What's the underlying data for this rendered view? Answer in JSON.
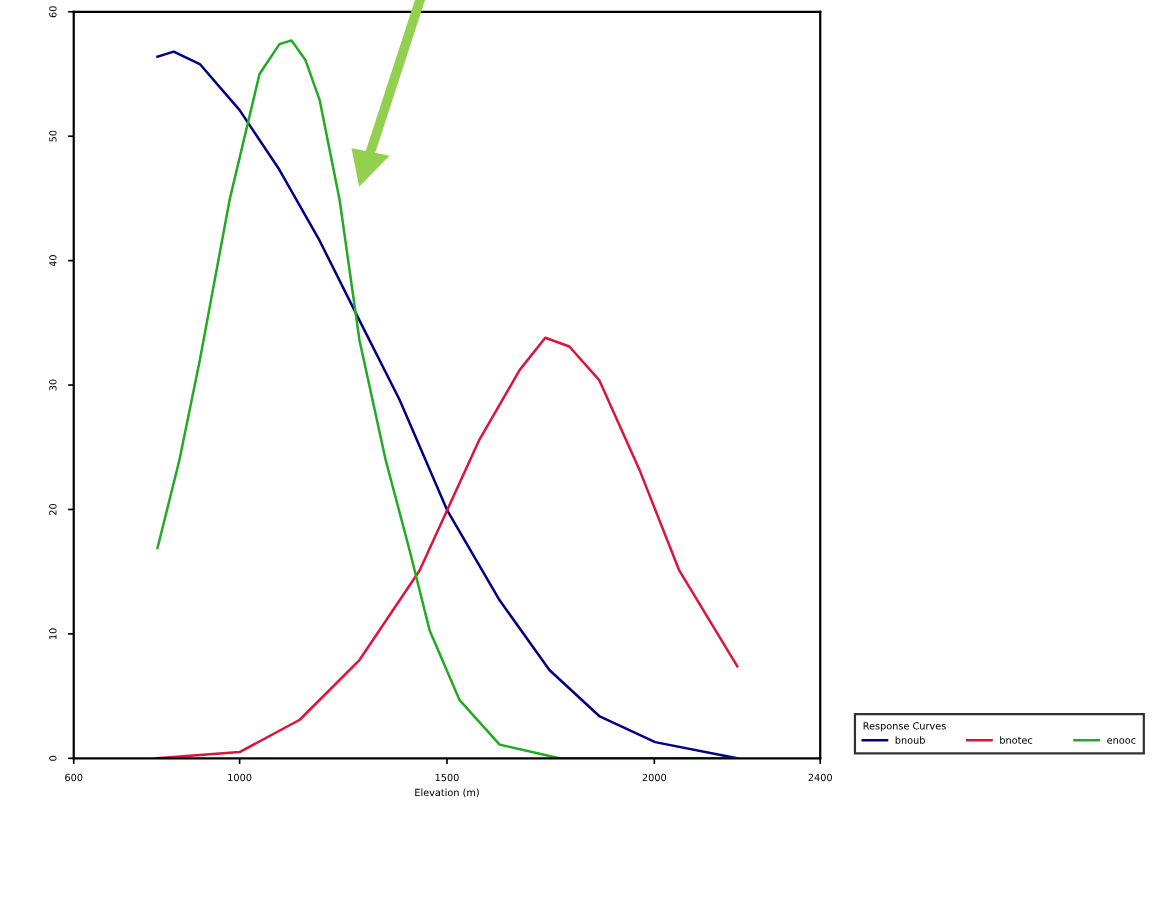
{
  "chart_data": {
    "type": "line",
    "xlabel": "Elevation (m)",
    "legend_title": "Response Curves",
    "legend": "bottom right",
    "grid": false,
    "marker": "none",
    "line_style": "solid",
    "xlim": [
      600,
      2400
    ],
    "xticks": [
      600,
      1000,
      1500,
      2000,
      2400
    ],
    "ylim": [
      0,
      60
    ],
    "yticks": [
      0,
      10,
      20,
      30,
      40,
      50,
      60
    ],
    "series": [
      {
        "name": "bnoub",
        "color": "#000080",
        "x": [
          802,
          841,
          904,
          1000,
          1096,
          1193,
          1289,
          1386,
          1501,
          1627,
          1747,
          1867,
          2002,
          2200
        ],
        "values": [
          56.4,
          56.8,
          55.8,
          52.1,
          47.3,
          41.6,
          35.2,
          28.8,
          19.9,
          12.7,
          7.1,
          3.4,
          1.3,
          0
        ]
      },
      {
        "name": "bnotec",
        "color": "#dc143c",
        "x": [
          800,
          1000,
          1145,
          1289,
          1434,
          1578,
          1675,
          1737,
          1795,
          1867,
          1964,
          2060,
          2200
        ],
        "values": [
          0,
          0.5,
          3.1,
          7.9,
          15.1,
          25.6,
          31.2,
          33.8,
          33.1,
          30.4,
          23.2,
          15.1,
          7.4
        ]
      },
      {
        "name": "enooc",
        "color": "#22aa22",
        "x": [
          802,
          855,
          904,
          976,
          1048,
          1096,
          1125,
          1159,
          1193,
          1241,
          1289,
          1352,
          1410,
          1458,
          1530,
          1627,
          1771,
          2200
        ],
        "values": [
          16.9,
          24.0,
          32.0,
          44.9,
          55.0,
          57.4,
          57.7,
          56.1,
          52.9,
          44.9,
          33.6,
          24.0,
          16.7,
          10.3,
          4.7,
          1.1,
          0,
          0
        ]
      }
    ]
  }
}
